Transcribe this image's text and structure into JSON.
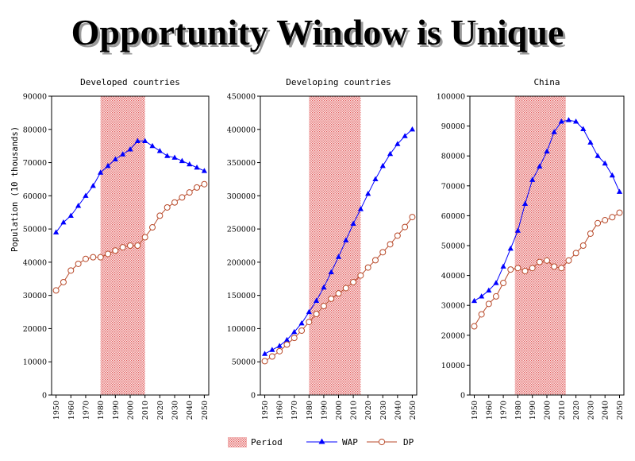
{
  "title": "Opportunity Window is Unique",
  "ylabel": "Population (10 thousands)",
  "legend": {
    "period": "Period",
    "wap": "WAP",
    "dp": "DP"
  },
  "colors": {
    "wap": "#0000ff",
    "dp": "#b84a2a",
    "period": "#e46a6a"
  },
  "chart_data": [
    {
      "type": "line",
      "title": "Developed countries",
      "ylim": [
        0,
        90000
      ],
      "yticks": [
        "0",
        "10000",
        "20000",
        "30000",
        "40000",
        "50000",
        "60000",
        "70000",
        "80000",
        "90000"
      ],
      "period": [
        1980,
        2010
      ],
      "x": [
        1950,
        1955,
        1960,
        1965,
        1970,
        1975,
        1980,
        1985,
        1990,
        1995,
        2000,
        2005,
        2010,
        2015,
        2020,
        2025,
        2030,
        2035,
        2040,
        2045,
        2050
      ],
      "xticks": [
        "1950",
        "1960",
        "1970",
        "1980",
        "1990",
        "2000",
        "2010",
        "2020",
        "2030",
        "2040",
        "2050"
      ],
      "series": [
        {
          "name": "WAP",
          "values": [
            49000,
            52000,
            54000,
            57000,
            60000,
            63000,
            67000,
            69000,
            71000,
            72500,
            74000,
            76500,
            76500,
            75000,
            73500,
            72000,
            71500,
            70500,
            69500,
            68500,
            67500
          ]
        },
        {
          "name": "DP",
          "values": [
            31500,
            34000,
            37500,
            39500,
            41000,
            41500,
            41500,
            42500,
            43500,
            44500,
            45000,
            45000,
            47500,
            50500,
            54000,
            56500,
            58000,
            59500,
            61000,
            62500,
            63500
          ]
        }
      ]
    },
    {
      "type": "line",
      "title": "Developing countries",
      "ylim": [
        0,
        450000
      ],
      "yticks": [
        "0",
        "50000",
        "100000",
        "150000",
        "200000",
        "250000",
        "300000",
        "350000",
        "400000",
        "450000"
      ],
      "period": [
        1980,
        2015
      ],
      "x": [
        1950,
        1955,
        1960,
        1965,
        1970,
        1975,
        1980,
        1985,
        1990,
        1995,
        2000,
        2005,
        2010,
        2015,
        2020,
        2025,
        2030,
        2035,
        2040,
        2045,
        2050
      ],
      "xticks": [
        "1950",
        "1960",
        "1970",
        "1980",
        "1990",
        "2000",
        "2010",
        "2020",
        "2030",
        "2040",
        "2050"
      ],
      "series": [
        {
          "name": "WAP",
          "values": [
            62000,
            68000,
            74000,
            83000,
            95000,
            108000,
            125000,
            142000,
            162000,
            185000,
            208000,
            233000,
            258000,
            280000,
            303000,
            325000,
            345000,
            363000,
            378000,
            390000,
            400000
          ]
        },
        {
          "name": "DP",
          "values": [
            51000,
            58000,
            66000,
            76000,
            86000,
            97000,
            110000,
            122000,
            134000,
            145000,
            153000,
            161000,
            170000,
            180000,
            192000,
            203000,
            215000,
            227000,
            240000,
            253000,
            268000
          ]
        }
      ]
    },
    {
      "type": "line",
      "title": "China",
      "ylim": [
        0,
        100000
      ],
      "yticks": [
        "0",
        "10000",
        "20000",
        "30000",
        "40000",
        "50000",
        "60000",
        "70000",
        "80000",
        "90000",
        "100000"
      ],
      "period": [
        1978,
        2013
      ],
      "x": [
        1950,
        1955,
        1960,
        1965,
        1970,
        1975,
        1980,
        1985,
        1990,
        1995,
        2000,
        2005,
        2010,
        2015,
        2020,
        2025,
        2030,
        2035,
        2040,
        2045,
        2050
      ],
      "xticks": [
        "1950",
        "1960",
        "1970",
        "1980",
        "1990",
        "2000",
        "2010",
        "2020",
        "2030",
        "2040",
        "2050"
      ],
      "series": [
        {
          "name": "WAP",
          "values": [
            31500,
            33000,
            35000,
            37500,
            43000,
            49000,
            55000,
            64000,
            72000,
            76500,
            81500,
            88000,
            91500,
            92000,
            91500,
            89000,
            84500,
            80000,
            77500,
            73500,
            68000
          ]
        },
        {
          "name": "DP",
          "values": [
            23000,
            27000,
            30500,
            33000,
            37500,
            42000,
            42500,
            41500,
            42500,
            44500,
            45000,
            43000,
            42500,
            45000,
            47500,
            50000,
            54000,
            57500,
            58500,
            59500,
            61000
          ]
        }
      ]
    }
  ]
}
